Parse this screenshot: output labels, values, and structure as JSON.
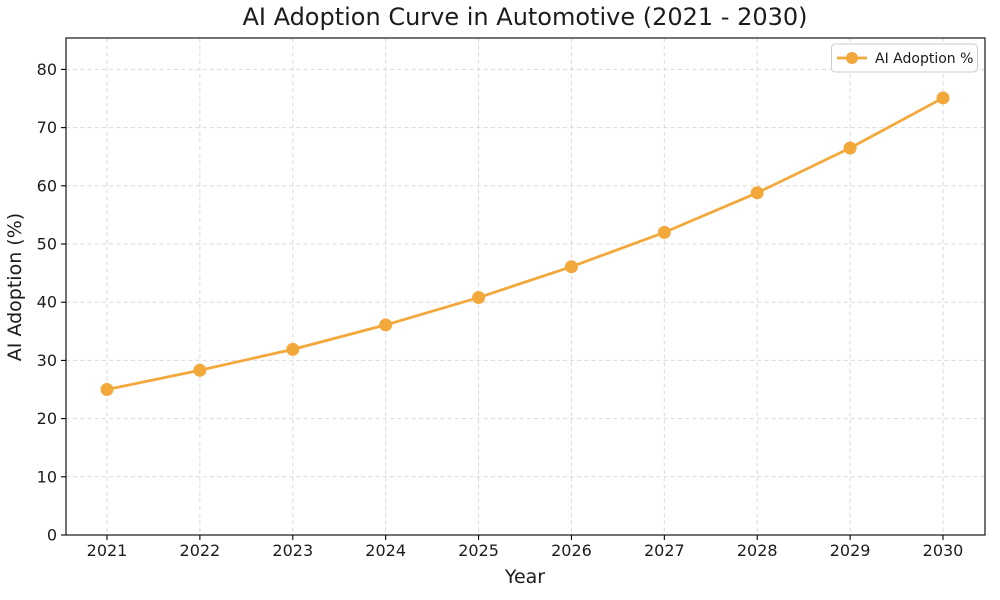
{
  "chart_data": {
    "type": "line",
    "title": "AI Adoption Curve in Automotive (2021 - 2030)",
    "xlabel": "Year",
    "ylabel": "AI Adoption (%)",
    "categories": [
      "2021",
      "2022",
      "2023",
      "2024",
      "2025",
      "2026",
      "2027",
      "2028",
      "2029",
      "2030"
    ],
    "series": [
      {
        "name": "AI Adoption %",
        "values": [
          25.0,
          28.3,
          31.9,
          36.1,
          40.8,
          46.1,
          52.0,
          58.8,
          66.5,
          75.1
        ],
        "color": "#F3A83C",
        "marker": "circle"
      }
    ],
    "ylim": [
      0,
      85.4
    ],
    "yticks": [
      0,
      10,
      20,
      30,
      40,
      50,
      60,
      70,
      80
    ],
    "grid": true,
    "grid_color": "#d5d5d5",
    "grid_style": "dashed",
    "axis_color": "#000000",
    "text_color": "#1c1c1c",
    "background_color": "#ffffff",
    "legend": {
      "position": "upper-right",
      "border_color": "#cccccc",
      "background": "#ffffff"
    }
  }
}
